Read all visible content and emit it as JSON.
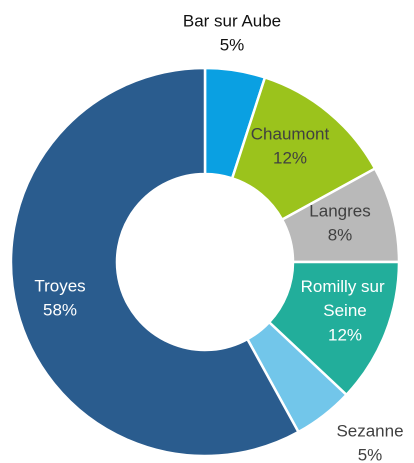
{
  "chart_data": {
    "type": "donut",
    "categories": [
      "Bar sur Aube",
      "Chaumont",
      "Langres",
      "Romilly sur Seine",
      "Sezanne",
      "Troyes"
    ],
    "values": [
      5,
      12,
      8,
      12,
      5,
      58
    ],
    "value_labels": [
      "5%",
      "12%",
      "8%",
      "12%",
      "5%",
      "58%"
    ],
    "colors": [
      "#0aa0e2",
      "#9bc31c",
      "#b9b9b9",
      "#22ae9b",
      "#72c6ea",
      "#2a5c8e"
    ]
  }
}
